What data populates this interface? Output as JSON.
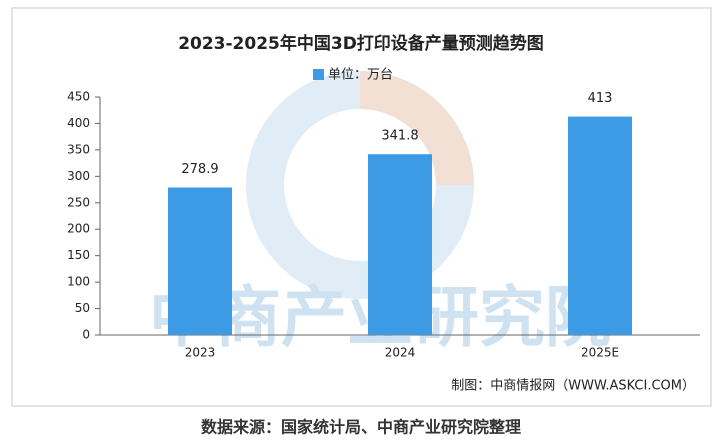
{
  "chart_data": {
    "type": "bar",
    "title": "2023-2025年中国3D打印设备产量预测趋势图",
    "categories": [
      "2023",
      "2024",
      "2025E"
    ],
    "series": [
      {
        "name": "单位：万台",
        "color": "#3d9be6",
        "values": [
          278.9,
          341.8,
          413
        ]
      }
    ],
    "ylim": [
      0,
      450
    ],
    "yticks": [
      0,
      50,
      100,
      150,
      200,
      250,
      300,
      350,
      400,
      450
    ],
    "grid": false,
    "legend": "top",
    "watermark": "中商产业研究院",
    "credit": "制图：中商情报网（WWW.ASKCI.COM）"
  },
  "footer": "数据来源：国家统计局、中商产业研究院整理"
}
